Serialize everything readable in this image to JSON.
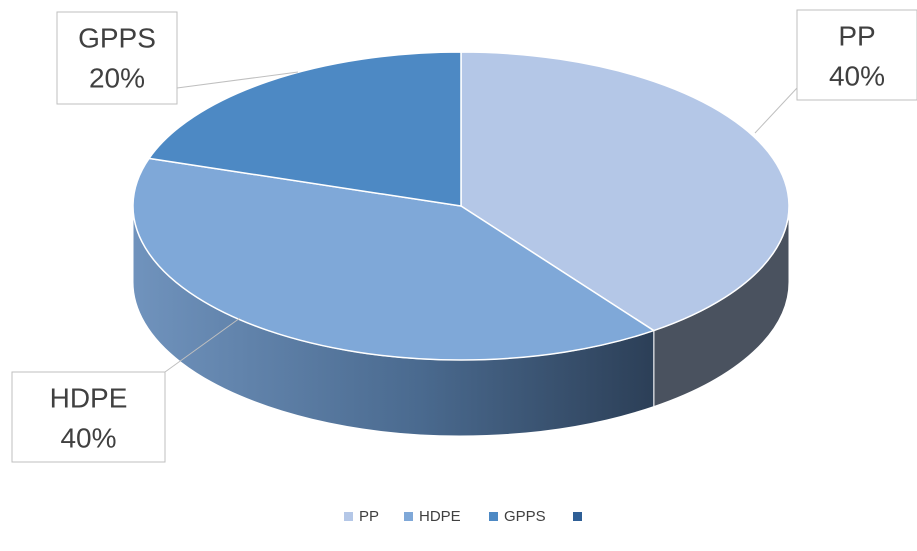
{
  "chart_data": {
    "type": "pie",
    "categories": [
      "PP",
      "HDPE",
      "GPPS",
      null
    ],
    "values": [
      40,
      40,
      20,
      0
    ],
    "value_labels": [
      "40%",
      "40%",
      "20%",
      null
    ],
    "colors": [
      "#b4c7e7",
      "#7fa8d8",
      "#4d89c4",
      "#2f5f96"
    ],
    "legend": "bottom"
  }
}
